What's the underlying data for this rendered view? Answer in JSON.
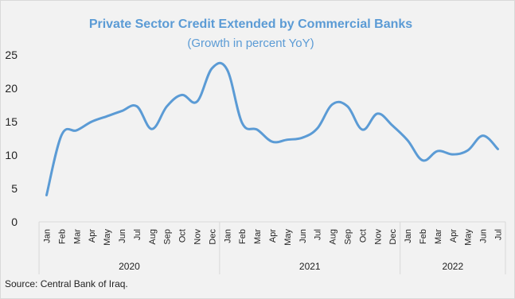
{
  "chart_data": {
    "type": "line",
    "title": "Private Sector Credit Extended by Commercial Banks",
    "subtitle": "(Growth in percent YoY)",
    "x": [
      "Jan",
      "Feb",
      "Mar",
      "Apr",
      "May",
      "Jun",
      "Jul",
      "Aug",
      "Sep",
      "Oct",
      "Nov",
      "Dec",
      "Jan",
      "Feb",
      "Mar",
      "Apr",
      "May",
      "Jun",
      "Jul",
      "Aug",
      "Sep",
      "Oct",
      "Nov",
      "Dec",
      "Jan",
      "Feb",
      "Mar",
      "Apr",
      "May",
      "Jun",
      "Jul"
    ],
    "year_groups": [
      {
        "label": "2020",
        "count": 12
      },
      {
        "label": "2021",
        "count": 12
      },
      {
        "label": "2022",
        "count": 7
      }
    ],
    "series": [
      {
        "values": [
          4.0,
          13.0,
          13.7,
          15.0,
          15.8,
          16.6,
          17.3,
          13.9,
          17.3,
          19.0,
          18.0,
          23.0,
          22.8,
          14.8,
          13.8,
          12.0,
          12.3,
          12.6,
          14.0,
          17.6,
          17.3,
          13.8,
          16.2,
          14.4,
          12.2,
          9.2,
          10.6,
          10.1,
          10.7,
          12.9,
          10.9
        ]
      }
    ],
    "yticks": [
      0,
      5,
      10,
      15,
      20,
      25
    ],
    "ylim": [
      0,
      25
    ],
    "grid": false,
    "line_color": "#5b9bd5"
  },
  "source": "Source: Central Bank of Iraq."
}
